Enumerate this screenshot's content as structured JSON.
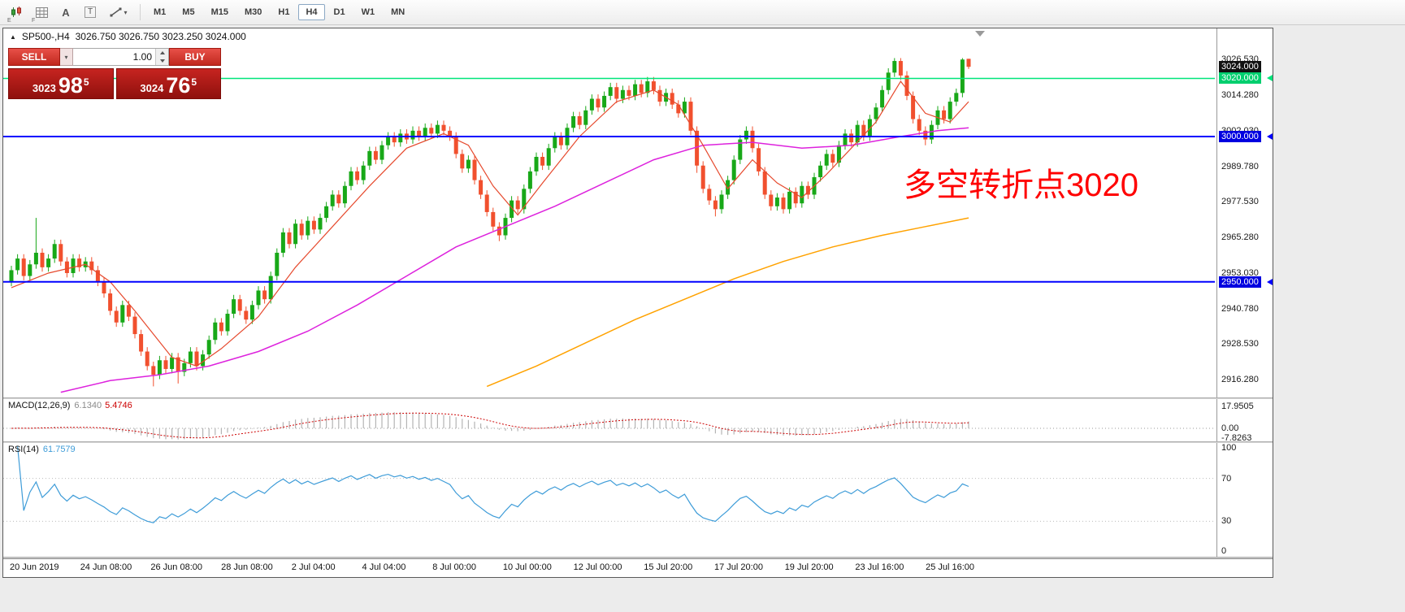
{
  "window_title": {
    "symbol": "SP500-,H4",
    "ohlc": "3026.750 3026.750 3023.250 3024.000"
  },
  "toolbar": {
    "icons": [
      {
        "name": "chart-mode",
        "badge": "E"
      },
      {
        "name": "grid-mode",
        "badge": "F"
      },
      {
        "name": "font-tool",
        "label": "A"
      },
      {
        "name": "text-tool",
        "label": "T"
      },
      {
        "name": "draw-tools",
        "caret": "▾"
      }
    ],
    "timeframes": [
      "M1",
      "M5",
      "M15",
      "M30",
      "H1",
      "H4",
      "D1",
      "W1",
      "MN"
    ],
    "selected_timeframe": "H4"
  },
  "trade": {
    "sell_label": "SELL",
    "buy_label": "BUY",
    "volume": "1.00",
    "bid": {
      "prefix": "3023",
      "big": "98",
      "sup": "5"
    },
    "ask": {
      "prefix": "3024",
      "big": "76",
      "sup": "5"
    }
  },
  "annotation": {
    "text": "多空转折点3020",
    "color": "#ff0000"
  },
  "price_scale": {
    "ticks": [
      "3026.530",
      "3014.280",
      "3002.030",
      "2989.780",
      "2977.530",
      "2965.280",
      "2953.030",
      "2940.780",
      "2928.530",
      "2916.280"
    ],
    "badges": [
      {
        "label": "3024.000",
        "price": 3024,
        "style": "current"
      },
      {
        "label": "3020.000",
        "price": 3020,
        "style": "green"
      },
      {
        "label": "3000.000",
        "price": 3000,
        "style": "blue"
      },
      {
        "label": "2950.000",
        "price": 2950,
        "style": "blue"
      }
    ]
  },
  "macd": {
    "name": "MACD(12,26,9)",
    "main": "6.1340",
    "signal": "5.4746",
    "scale": [
      "17.9505",
      "0.00",
      "-7.8263"
    ]
  },
  "rsi": {
    "name": "RSI(14)",
    "value": "61.7579",
    "scale": [
      "100",
      "70",
      "30",
      "0"
    ],
    "levels": [
      70,
      30
    ]
  },
  "time_axis": [
    "20 Jun 2019",
    "24 Jun 08:00",
    "26 Jun 08:00",
    "28 Jun 08:00",
    "2 Jul 04:00",
    "4 Jul 04:00",
    "8 Jul 00:00",
    "10 Jul 00:00",
    "12 Jul 00:00",
    "15 Jul 20:00",
    "17 Jul 20:00",
    "19 Jul 20:00",
    "23 Jul 16:00",
    "25 Jul 16:00"
  ],
  "chart_data": {
    "type": "candlestick",
    "symbol": "SP500-",
    "timeframe": "H4",
    "y_axis": {
      "min": 2910.2,
      "max": 3037.2
    },
    "levels": [
      {
        "price": 3020,
        "color": "#00e57a",
        "width": 1.5
      },
      {
        "price": 3000,
        "color": "#0000ff",
        "width": 2
      },
      {
        "price": 2950,
        "color": "#0000ff",
        "width": 2
      }
    ],
    "colors": {
      "up": "#18a818",
      "down": "#f1502e",
      "macd_hist": "#b4b4b4",
      "macd_signal": "#cc0000",
      "rsi_line": "#3e9cd8"
    },
    "indicators": {
      "macd": {
        "fast": 12,
        "slow": 26,
        "signal": 9
      },
      "rsi": {
        "period": 14
      }
    },
    "candles": [
      [
        2950,
        2955.5,
        2948.5,
        2954
      ],
      [
        2954,
        2959.5,
        2952.5,
        2958
      ],
      [
        2958,
        2959.5,
        2950.5,
        2952
      ],
      [
        2952,
        2957.5,
        2950.5,
        2956
      ],
      [
        2956,
        2972,
        2954.5,
        2960
      ],
      [
        2960,
        2961.5,
        2953.5,
        2955
      ],
      [
        2955,
        2959.5,
        2953.5,
        2958
      ],
      [
        2958,
        2964.5,
        2956.5,
        2963
      ],
      [
        2963,
        2964.5,
        2955.5,
        2957
      ],
      [
        2957,
        2958.5,
        2951.5,
        2953
      ],
      [
        2953,
        2959.5,
        2951.5,
        2958
      ],
      [
        2958,
        2959.5,
        2953.5,
        2955
      ],
      [
        2955,
        2958.5,
        2953.5,
        2957
      ],
      [
        2957,
        2958.5,
        2952.5,
        2954
      ],
      [
        2954,
        2955.5,
        2948.5,
        2950
      ],
      [
        2950,
        2951.5,
        2944.5,
        2946
      ],
      [
        2946,
        2947.5,
        2938.5,
        2940
      ],
      [
        2940,
        2941.5,
        2934.5,
        2936
      ],
      [
        2936,
        2943.5,
        2934.5,
        2942
      ],
      [
        2942,
        2943.5,
        2936.5,
        2938
      ],
      [
        2938,
        2939.5,
        2930.5,
        2932
      ],
      [
        2932,
        2933.5,
        2924.5,
        2926
      ],
      [
        2926,
        2927.5,
        2919.5,
        2921
      ],
      [
        2921,
        2922.5,
        2914,
        2918
      ],
      [
        2918,
        2924.5,
        2916.5,
        2923
      ],
      [
        2923,
        2924.5,
        2918.5,
        2920
      ],
      [
        2920,
        2925.5,
        2918.5,
        2924
      ],
      [
        2924,
        2925.5,
        2915,
        2919
      ],
      [
        2919,
        2923.5,
        2917.5,
        2922
      ],
      [
        2922,
        2927.5,
        2920.5,
        2926
      ],
      [
        2926,
        2927.5,
        2919.5,
        2921
      ],
      [
        2921,
        2926.5,
        2919.5,
        2925
      ],
      [
        2925,
        2931.5,
        2923.5,
        2930
      ],
      [
        2930,
        2937.5,
        2928.5,
        2936
      ],
      [
        2936,
        2937.5,
        2931.5,
        2933
      ],
      [
        2933,
        2940.5,
        2931.5,
        2939
      ],
      [
        2939,
        2945.5,
        2937.5,
        2944
      ],
      [
        2944,
        2945.5,
        2938.5,
        2940
      ],
      [
        2940,
        2941.5,
        2935.5,
        2937
      ],
      [
        2937,
        2943.5,
        2935.5,
        2942
      ],
      [
        2942,
        2948.5,
        2940.5,
        2947
      ],
      [
        2947,
        2948.5,
        2942.5,
        2944
      ],
      [
        2944,
        2953.5,
        2942.5,
        2952
      ],
      [
        2952,
        2961.5,
        2950.5,
        2960
      ],
      [
        2960,
        2968.5,
        2958.5,
        2967
      ],
      [
        2967,
        2968.5,
        2961.5,
        2963
      ],
      [
        2963,
        2971.5,
        2961.5,
        2970
      ],
      [
        2970,
        2971.5,
        2964.5,
        2966
      ],
      [
        2966,
        2972.5,
        2964.5,
        2971
      ],
      [
        2971,
        2972.5,
        2966.5,
        2968
      ],
      [
        2968,
        2973.5,
        2966.5,
        2972
      ],
      [
        2972,
        2977.5,
        2970.5,
        2976
      ],
      [
        2976,
        2981.5,
        2974.5,
        2980
      ],
      [
        2980,
        2981.5,
        2975.5,
        2977
      ],
      [
        2977,
        2984.5,
        2975.5,
        2983
      ],
      [
        2983,
        2989.5,
        2981.5,
        2988
      ],
      [
        2988,
        2989.5,
        2983.5,
        2985
      ],
      [
        2985,
        2991.5,
        2983.5,
        2990
      ],
      [
        2990,
        2996.5,
        2988.5,
        2995
      ],
      [
        2995,
        2996.5,
        2990.5,
        2992
      ],
      [
        2992,
        2998.5,
        2990.5,
        2997
      ],
      [
        2997,
        3001.5,
        2995.5,
        3000
      ],
      [
        3000,
        3001.5,
        2996.5,
        2998
      ],
      [
        2998,
        3002.5,
        2996.5,
        3001
      ],
      [
        3001,
        3002.5,
        2997.5,
        2999
      ],
      [
        2999,
        3003.5,
        2997.5,
        3002
      ],
      [
        3002,
        3003.5,
        2998.5,
        3000
      ],
      [
        3000,
        3004.5,
        2998.5,
        3003
      ],
      [
        3003,
        3004.5,
        2999.5,
        3001
      ],
      [
        3001,
        3005.5,
        2999.5,
        3004
      ],
      [
        3004,
        3005.5,
        3000.5,
        3002
      ],
      [
        3002,
        3003.5,
        2998.5,
        3000
      ],
      [
        3000,
        3001.5,
        2992.5,
        2994
      ],
      [
        2994,
        2995.5,
        2987.5,
        2989
      ],
      [
        2989,
        2993.5,
        2987.5,
        2992
      ],
      [
        2992,
        2993.5,
        2983.5,
        2985
      ],
      [
        2985,
        2986.5,
        2978.5,
        2980
      ],
      [
        2980,
        2981.5,
        2972.5,
        2974
      ],
      [
        2974,
        2975.5,
        2967.5,
        2969
      ],
      [
        2969,
        2970.5,
        2964,
        2966
      ],
      [
        2966,
        2973.5,
        2964.5,
        2972
      ],
      [
        2972,
        2979.5,
        2970.5,
        2978
      ],
      [
        2978,
        2979.5,
        2973.5,
        2975
      ],
      [
        2975,
        2983.5,
        2973.5,
        2982
      ],
      [
        2982,
        2989.5,
        2980.5,
        2988
      ],
      [
        2988,
        2994.5,
        2986.5,
        2993
      ],
      [
        2993,
        2994.5,
        2988.5,
        2990
      ],
      [
        2990,
        2997.5,
        2988.5,
        2996
      ],
      [
        2996,
        3001.5,
        2994.5,
        3000
      ],
      [
        3000,
        3001.5,
        2995.5,
        2997
      ],
      [
        2997,
        3004.5,
        2995.5,
        3003
      ],
      [
        3003,
        3008.5,
        3001.5,
        3007
      ],
      [
        3007,
        3008.5,
        3002.5,
        3004
      ],
      [
        3004,
        3010.5,
        3002.5,
        3009
      ],
      [
        3009,
        3014.5,
        3007.5,
        3013
      ],
      [
        3013,
        3014.5,
        3008.5,
        3010
      ],
      [
        3010,
        3015.5,
        3008.5,
        3014
      ],
      [
        3014,
        3018.5,
        3012.5,
        3017
      ],
      [
        3017,
        3018.5,
        3011.5,
        3013
      ],
      [
        3013,
        3017.5,
        3011.5,
        3016
      ],
      [
        3016,
        3017.5,
        3012.5,
        3014
      ],
      [
        3014,
        3019.5,
        3012.5,
        3018
      ],
      [
        3018,
        3019.5,
        3013.5,
        3015
      ],
      [
        3015,
        3020.5,
        3013.5,
        3019
      ],
      [
        3019,
        3020.5,
        3014.5,
        3016
      ],
      [
        3016,
        3017.5,
        3010.5,
        3012
      ],
      [
        3012,
        3016.5,
        3010.5,
        3015
      ],
      [
        3015,
        3016.5,
        3009.5,
        3011
      ],
      [
        3011,
        3012.5,
        3006.5,
        3008
      ],
      [
        3008,
        3013.5,
        3006.5,
        3012
      ],
      [
        3012,
        3013.5,
        3000.5,
        3002
      ],
      [
        3002,
        3003.5,
        2987.5,
        2990
      ],
      [
        2990,
        2991.5,
        2980.5,
        2982
      ],
      [
        2982,
        2983.5,
        2976.5,
        2978
      ],
      [
        2978,
        2979.5,
        2972.5,
        2975
      ],
      [
        2975,
        2981.5,
        2973.5,
        2980
      ],
      [
        2980,
        2986.5,
        2978.5,
        2985
      ],
      [
        2985,
        2993.5,
        2983.5,
        2992
      ],
      [
        2992,
        3000.5,
        2990.5,
        2999
      ],
      [
        2999,
        3003.5,
        2997.5,
        3002
      ],
      [
        3002,
        3003.5,
        2994.5,
        2996
      ],
      [
        2996,
        2997.5,
        2986.5,
        2988
      ],
      [
        2988,
        2989.5,
        2978.5,
        2980
      ],
      [
        2980,
        2981.5,
        2974.5,
        2976
      ],
      [
        2976,
        2980.5,
        2974.5,
        2979
      ],
      [
        2979,
        2980.5,
        2973.5,
        2975
      ],
      [
        2975,
        2982.5,
        2973.5,
        2981
      ],
      [
        2981,
        2982.5,
        2975.5,
        2977
      ],
      [
        2977,
        2984.5,
        2975.5,
        2983
      ],
      [
        2983,
        2984.5,
        2978.5,
        2980
      ],
      [
        2980,
        2987.5,
        2978.5,
        2986
      ],
      [
        2986,
        2991.5,
        2984.5,
        2990
      ],
      [
        2990,
        2995.5,
        2988.5,
        2994
      ],
      [
        2994,
        2995.5,
        2989.5,
        2991
      ],
      [
        2991,
        2998.5,
        2989.5,
        2997
      ],
      [
        2997,
        3002.5,
        2995.5,
        3001
      ],
      [
        3001,
        3002.5,
        2996.5,
        2998
      ],
      [
        2998,
        3005.5,
        2996.5,
        3004
      ],
      [
        3004,
        3005.5,
        2998.5,
        3000
      ],
      [
        3000,
        3007.5,
        2998.5,
        3006
      ],
      [
        3006,
        3011.5,
        3004.5,
        3010
      ],
      [
        3010,
        3017.5,
        3008.5,
        3016
      ],
      [
        3016,
        3023.5,
        3014.5,
        3022
      ],
      [
        3022,
        3027,
        3020.5,
        3026
      ],
      [
        3026,
        3027,
        3019.5,
        3021
      ],
      [
        3021,
        3022.5,
        3012.5,
        3014
      ],
      [
        3014,
        3015.5,
        3004.5,
        3006
      ],
      [
        3006,
        3007.5,
        3000.5,
        3002
      ],
      [
        3002,
        3003.5,
        2997,
        2999
      ],
      [
        2999,
        3005.5,
        2997.5,
        3004
      ],
      [
        3004,
        3010.5,
        3002.5,
        3009
      ],
      [
        3009,
        3010.5,
        3004.5,
        3006
      ],
      [
        3006,
        3013.5,
        3004.5,
        3012
      ],
      [
        3012,
        3016.5,
        3010.5,
        3015
      ],
      [
        3015,
        3027,
        3013.5,
        3026.5
      ],
      [
        3026.75,
        3026.75,
        3023.25,
        3024
      ]
    ],
    "moving_averages": [
      {
        "name": "fast",
        "color": "#e6492d",
        "width": 1.2,
        "points": [
          [
            0,
            2948
          ],
          [
            6,
            2953
          ],
          [
            12,
            2956
          ],
          [
            16,
            2950
          ],
          [
            20,
            2940
          ],
          [
            26,
            2924
          ],
          [
            30,
            2921
          ],
          [
            34,
            2927
          ],
          [
            40,
            2938
          ],
          [
            46,
            2955
          ],
          [
            52,
            2969
          ],
          [
            58,
            2983
          ],
          [
            64,
            2996
          ],
          [
            70,
            3001
          ],
          [
            74,
            2997
          ],
          [
            78,
            2983
          ],
          [
            82,
            2973
          ],
          [
            86,
            2984
          ],
          [
            92,
            3000
          ],
          [
            98,
            3012
          ],
          [
            104,
            3016
          ],
          [
            108,
            3011
          ],
          [
            112,
            2997
          ],
          [
            116,
            2982
          ],
          [
            120,
            2992
          ],
          [
            124,
            2984
          ],
          [
            128,
            2979
          ],
          [
            132,
            2987
          ],
          [
            136,
            2996
          ],
          [
            140,
            3005
          ],
          [
            144,
            3019
          ],
          [
            148,
            3008
          ],
          [
            152,
            3005
          ],
          [
            155,
            3012
          ]
        ]
      },
      {
        "name": "mid",
        "color": "#dd22dd",
        "width": 1.5,
        "points": [
          [
            8,
            2912
          ],
          [
            16,
            2916
          ],
          [
            24,
            2918
          ],
          [
            32,
            2921
          ],
          [
            40,
            2926
          ],
          [
            48,
            2933
          ],
          [
            56,
            2942
          ],
          [
            64,
            2952
          ],
          [
            72,
            2962
          ],
          [
            80,
            2969
          ],
          [
            88,
            2976
          ],
          [
            96,
            2984
          ],
          [
            104,
            2992
          ],
          [
            112,
            2997
          ],
          [
            120,
            2998
          ],
          [
            128,
            2996
          ],
          [
            136,
            2997
          ],
          [
            144,
            3000
          ],
          [
            150,
            3002
          ],
          [
            155,
            3003
          ]
        ]
      },
      {
        "name": "slow",
        "color": "#ffa200",
        "width": 1.5,
        "points": [
          [
            77,
            2914
          ],
          [
            85,
            2921
          ],
          [
            93,
            2929
          ],
          [
            101,
            2937
          ],
          [
            109,
            2944
          ],
          [
            117,
            2951
          ],
          [
            125,
            2957
          ],
          [
            133,
            2962
          ],
          [
            141,
            2966
          ],
          [
            148,
            2969
          ],
          [
            155,
            2972
          ]
        ]
      }
    ]
  }
}
